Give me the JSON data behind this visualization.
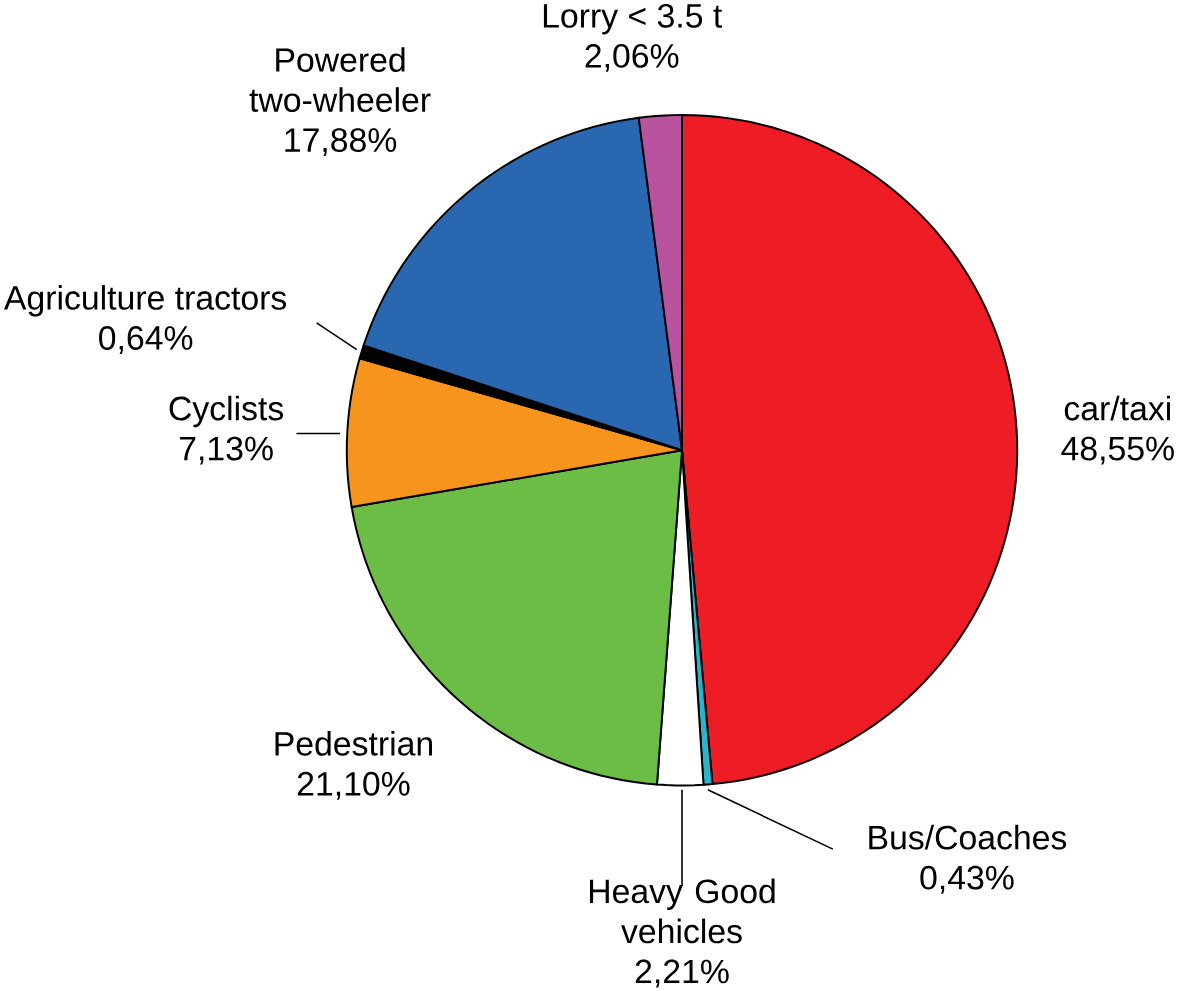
{
  "chart_data": {
    "type": "pie",
    "categories": [
      "car/taxi",
      "Bus/Coaches",
      "Heavy Good vehicles",
      "Pedestrian",
      "Cyclists",
      "Agriculture tractors",
      "Powered two-wheeler",
      "Lorry < 3.5 t"
    ],
    "values": [
      48.55,
      0.43,
      2.21,
      21.1,
      7.13,
      0.64,
      17.88,
      2.06
    ],
    "value_labels": [
      "48,55%",
      "0,43%",
      "2,21%",
      "21,10%",
      "7,13%",
      "0,64%",
      "17,88%",
      "2,06%"
    ],
    "colors": [
      "#ee1c24",
      "#29b5c9",
      "#ffffff",
      "#6cbd45",
      "#f7941d",
      "#000000",
      "#2a67b1",
      "#b9529f"
    ]
  }
}
